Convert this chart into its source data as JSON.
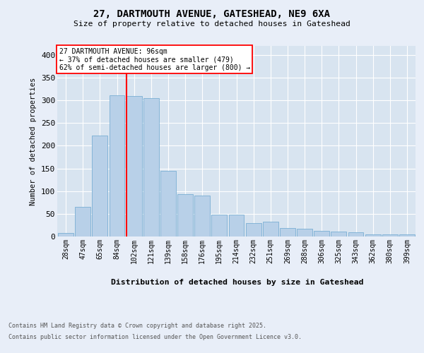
{
  "title_line1": "27, DARTMOUTH AVENUE, GATESHEAD, NE9 6XA",
  "title_line2": "Size of property relative to detached houses in Gateshead",
  "xlabel": "Distribution of detached houses by size in Gateshead",
  "ylabel": "Number of detached properties",
  "categories": [
    "28sqm",
    "47sqm",
    "65sqm",
    "84sqm",
    "102sqm",
    "121sqm",
    "139sqm",
    "158sqm",
    "176sqm",
    "195sqm",
    "214sqm",
    "232sqm",
    "251sqm",
    "269sqm",
    "288sqm",
    "306sqm",
    "325sqm",
    "343sqm",
    "362sqm",
    "380sqm",
    "399sqm"
  ],
  "values": [
    8,
    65,
    222,
    311,
    310,
    305,
    145,
    93,
    90,
    49,
    49,
    30,
    32,
    19,
    17,
    13,
    11,
    9,
    5,
    4,
    5
  ],
  "bar_color": "#b8d0e8",
  "bar_edge_color": "#7aafd4",
  "red_line_index": 4,
  "annotation_text": "27 DARTMOUTH AVENUE: 96sqm\n← 37% of detached houses are smaller (479)\n62% of semi-detached houses are larger (800) →",
  "annotation_box_color": "white",
  "annotation_box_edge": "red",
  "footer_line1": "Contains HM Land Registry data © Crown copyright and database right 2025.",
  "footer_line2": "Contains public sector information licensed under the Open Government Licence v3.0.",
  "ylim": [
    0,
    420
  ],
  "yticks": [
    0,
    50,
    100,
    150,
    200,
    250,
    300,
    350,
    400
  ],
  "background_color": "#e8eef8",
  "plot_background": "#d8e4f0",
  "fig_width": 6.0,
  "fig_height": 5.0,
  "fig_dpi": 100
}
